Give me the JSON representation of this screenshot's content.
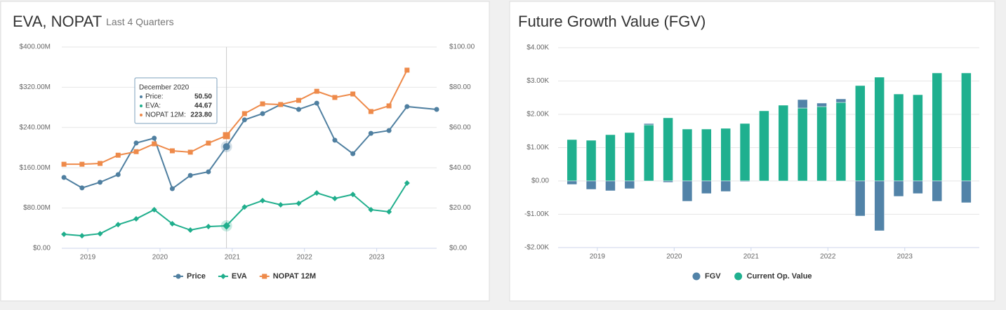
{
  "chart_data": [
    {
      "type": "line",
      "title": "EVA, NOPAT",
      "subtitle": "Last 4 Quarters",
      "x": [
        2018.67,
        2018.92,
        2019.17,
        2019.42,
        2019.67,
        2019.92,
        2020.17,
        2020.42,
        2020.67,
        2020.92,
        2021.17,
        2021.42,
        2021.67,
        2021.92,
        2022.17,
        2022.42,
        2022.67,
        2022.92,
        2023.17,
        2023.42,
        2023.83
      ],
      "xlim": [
        2018.64,
        2023.83
      ],
      "xticks": [
        2019,
        2020,
        2021,
        2022,
        2023
      ],
      "ylim": [
        0,
        400
      ],
      "yticks": [
        {
          "value": 0,
          "label": "$0.00"
        },
        {
          "value": 80,
          "label": "$80.00M"
        },
        {
          "value": 160,
          "label": "$160.00M"
        },
        {
          "value": 240,
          "label": "$240.00M"
        },
        {
          "value": 320,
          "label": "$320.00M"
        },
        {
          "value": 400,
          "label": "$400.00M"
        }
      ],
      "y2lim": [
        0,
        100
      ],
      "y2ticks": [
        {
          "value": 0,
          "label": "$0.00"
        },
        {
          "value": 20,
          "label": "$20.00"
        },
        {
          "value": 40,
          "label": "$40.00"
        },
        {
          "value": 60,
          "label": "$60.00"
        },
        {
          "value": 80,
          "label": "$80.00"
        },
        {
          "value": 100,
          "label": "$100.00"
        }
      ],
      "grid": true,
      "series": [
        {
          "name": "Price",
          "color": "#4f7fa0",
          "marker": "circle",
          "axis": "y2",
          "values": [
            35.2,
            30.0,
            32.8,
            36.6,
            52.3,
            54.7,
            29.6,
            36.2,
            38.0,
            50.5,
            63.8,
            66.9,
            71.4,
            69.0,
            72.1,
            53.7,
            47.0,
            57.1,
            58.5,
            70.4,
            69.0
          ]
        },
        {
          "name": "EVA",
          "color": "#1fae8c",
          "marker": "diamond",
          "values": [
            27.9,
            25,
            29,
            47,
            58.5,
            76.7,
            48.8,
            36.2,
            43.2,
            44.67,
            82,
            94.8,
            86.4,
            89.2,
            110,
            99,
            107,
            76.7,
            72.5,
            129.6,
            null
          ]
        },
        {
          "name": "NOPAT 12M",
          "color": "#ee8a4a",
          "marker": "square",
          "values": [
            167,
            167,
            168.6,
            185,
            192,
            207.6,
            193.7,
            191,
            209,
            223.8,
            267.6,
            287,
            285.7,
            294,
            312,
            299.7,
            306.6,
            271.8,
            283,
            354,
            null
          ]
        }
      ],
      "tooltip": {
        "title": "December 2020",
        "items": [
          {
            "label": "Price:",
            "value": "50.50"
          },
          {
            "label": "EVA:",
            "value": "44.67"
          },
          {
            "label": "NOPAT 12M:",
            "value": "223.80"
          }
        ]
      }
    },
    {
      "type": "bar",
      "title": "Future Growth Value (FGV)",
      "stacked": true,
      "x": [
        2018.67,
        2018.92,
        2019.17,
        2019.42,
        2019.67,
        2019.92,
        2020.17,
        2020.42,
        2020.67,
        2020.92,
        2021.17,
        2021.42,
        2021.67,
        2021.92,
        2022.17,
        2022.42,
        2022.67,
        2022.92,
        2023.17,
        2023.42,
        2023.8
      ],
      "xlim": [
        2018.49,
        2023.97
      ],
      "xticks": [
        2019,
        2020,
        2021,
        2022,
        2023
      ],
      "ylim": [
        -2000,
        4000
      ],
      "yticks": [
        {
          "value": -2000,
          "label": "-$2.00K"
        },
        {
          "value": -1000,
          "label": "-$1.00K"
        },
        {
          "value": 0,
          "label": "$0.00"
        },
        {
          "value": 1000,
          "label": "$1.00K"
        },
        {
          "value": 2000,
          "label": "$2.00K"
        },
        {
          "value": 3000,
          "label": "$3.00K"
        },
        {
          "value": 4000,
          "label": "$4.00K"
        }
      ],
      "grid": true,
      "series": [
        {
          "name": "FGV",
          "color": "#5283a8",
          "values": [
            -105,
            -253,
            -295,
            -232,
            40,
            -42,
            -610,
            -379,
            -316,
            -21,
            0,
            0,
            253,
            105,
            105,
            -1053,
            -1495,
            -463,
            -379,
            -610,
            -653
          ]
        },
        {
          "name": "Current Op. Value",
          "color": "#1fb08f",
          "values": [
            1242,
            1221,
            1389,
            1453,
            1684,
            1895,
            1558,
            1558,
            1579,
            1726,
            2105,
            2274,
            2189,
            2232,
            2358,
            2863,
            3116,
            2610,
            2589,
            3242,
            3242
          ]
        }
      ]
    }
  ]
}
